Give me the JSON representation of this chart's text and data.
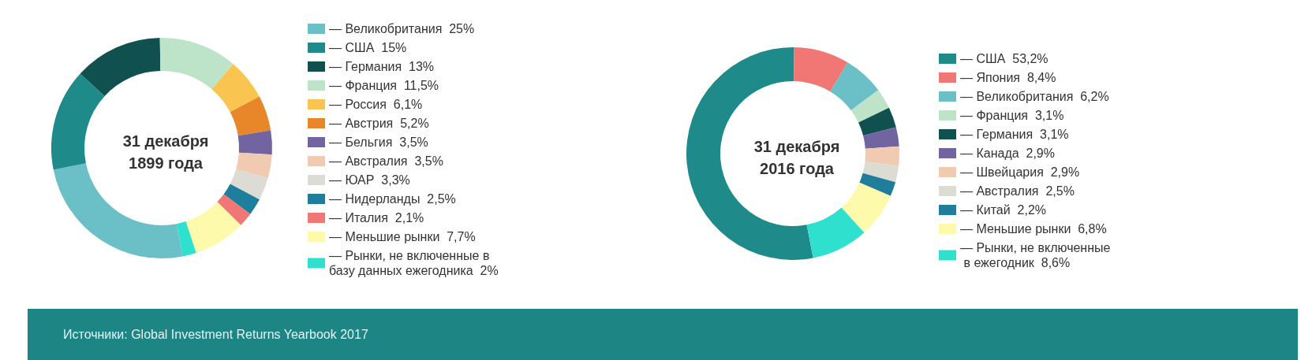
{
  "chart_data": [
    {
      "type": "donut",
      "title": "31 декабря 1899 года",
      "categories": [
        "— Великобритания",
        "— США",
        "— Германия",
        "— Франция",
        "— Россия",
        "— Австрия",
        "— Бельгия",
        "— Австралия",
        "— ЮАР",
        "— Нидерланды",
        "— Италия",
        "— Меньшие рынки",
        "— Рынки, не включенные в базу данных ежегодника"
      ],
      "values": [
        25,
        15,
        13,
        11.5,
        6.1,
        5.2,
        3.5,
        3.5,
        3.3,
        2.5,
        2.1,
        7.7,
        2
      ],
      "value_labels": [
        "25%",
        "15%",
        "13%",
        "11,5%",
        "6,1%",
        "5,2%",
        "3,5%",
        "3,5%",
        "3,3%",
        "2,5%",
        "2,1%",
        "7,7%",
        "2%"
      ],
      "colors": [
        "#6bc0c8",
        "#1f8a8a",
        "#10504f",
        "#bde3c8",
        "#f9c550",
        "#e8862a",
        "#7264a0",
        "#f1cbb1",
        "#dcdcd4",
        "#1f7e9c",
        "#f07774",
        "#fdfbab",
        "#2fe0cf"
      ],
      "legend": "right",
      "annotations": [
        "Источники: Global Investment Returns Yearbook 2017"
      ]
    },
    {
      "type": "donut",
      "title": "31 декабря 2016 года",
      "categories": [
        "— США",
        "— Япония",
        "— Великобритания",
        "— Франция",
        "— Германия",
        "— Канада",
        "— Швейцария",
        "— Австралия",
        "— Китай",
        "— Меньшие рынки",
        "— Рынки, не включенные в ежегодник"
      ],
      "values": [
        53.2,
        8.4,
        6.2,
        3.1,
        3.1,
        2.9,
        2.9,
        2.5,
        2.2,
        6.8,
        8.6
      ],
      "value_labels": [
        "53,2%",
        "8,4%",
        "6,2%",
        "3,1%",
        "3,1%",
        "2,9%",
        "2,9%",
        "2,5%",
        "2,2%",
        "6,8%",
        "8,6%"
      ],
      "colors": [
        "#1f8a8a",
        "#f07774",
        "#6bc0c8",
        "#bde3c8",
        "#10504f",
        "#7264a0",
        "#f1cbb1",
        "#dcdcd4",
        "#1f7e9c",
        "#fdfbab",
        "#2fe0cf"
      ],
      "legend": "right"
    }
  ]
}
